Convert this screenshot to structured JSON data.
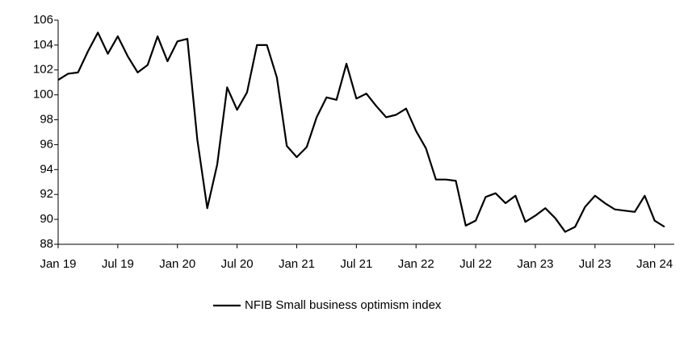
{
  "chart_data": {
    "type": "line",
    "categories": [
      "Jan 19",
      null,
      null,
      null,
      null,
      null,
      "Jul 19",
      null,
      null,
      null,
      null,
      null,
      "Jan 20",
      null,
      null,
      null,
      null,
      null,
      "Jul 20",
      null,
      null,
      null,
      null,
      null,
      "Jan 21",
      null,
      null,
      null,
      null,
      null,
      "Jul 21",
      null,
      null,
      null,
      null,
      null,
      "Jan 22",
      null,
      null,
      null,
      null,
      null,
      "Jul 22",
      null,
      null,
      null,
      null,
      null,
      "Jan 23",
      null,
      null,
      null,
      null,
      null,
      "Jul 23",
      null,
      null,
      null,
      null,
      null,
      "Jan 24",
      null
    ],
    "series": [
      {
        "name": "NFIB Small business optimism index",
        "color": "#000000",
        "values": [
          101.2,
          101.7,
          101.8,
          103.5,
          105.0,
          103.3,
          104.7,
          103.1,
          101.8,
          102.4,
          104.7,
          102.7,
          104.3,
          104.5,
          96.4,
          90.9,
          94.4,
          100.6,
          98.8,
          100.2,
          104.0,
          104.0,
          101.4,
          95.9,
          95.0,
          95.8,
          98.2,
          99.8,
          99.6,
          102.5,
          99.7,
          100.1,
          99.1,
          98.2,
          98.4,
          98.9,
          97.1,
          95.7,
          93.2,
          93.2,
          93.1,
          89.5,
          89.9,
          91.8,
          92.1,
          91.3,
          91.9,
          89.8,
          90.3,
          90.9,
          90.1,
          89.0,
          89.4,
          91.0,
          91.9,
          91.3,
          90.8,
          90.7,
          90.6,
          91.9,
          89.9,
          89.4
        ]
      }
    ],
    "ylim": [
      88,
      106
    ],
    "yticks": [
      88,
      90,
      92,
      94,
      96,
      98,
      100,
      102,
      104,
      106
    ],
    "grid": false
  }
}
